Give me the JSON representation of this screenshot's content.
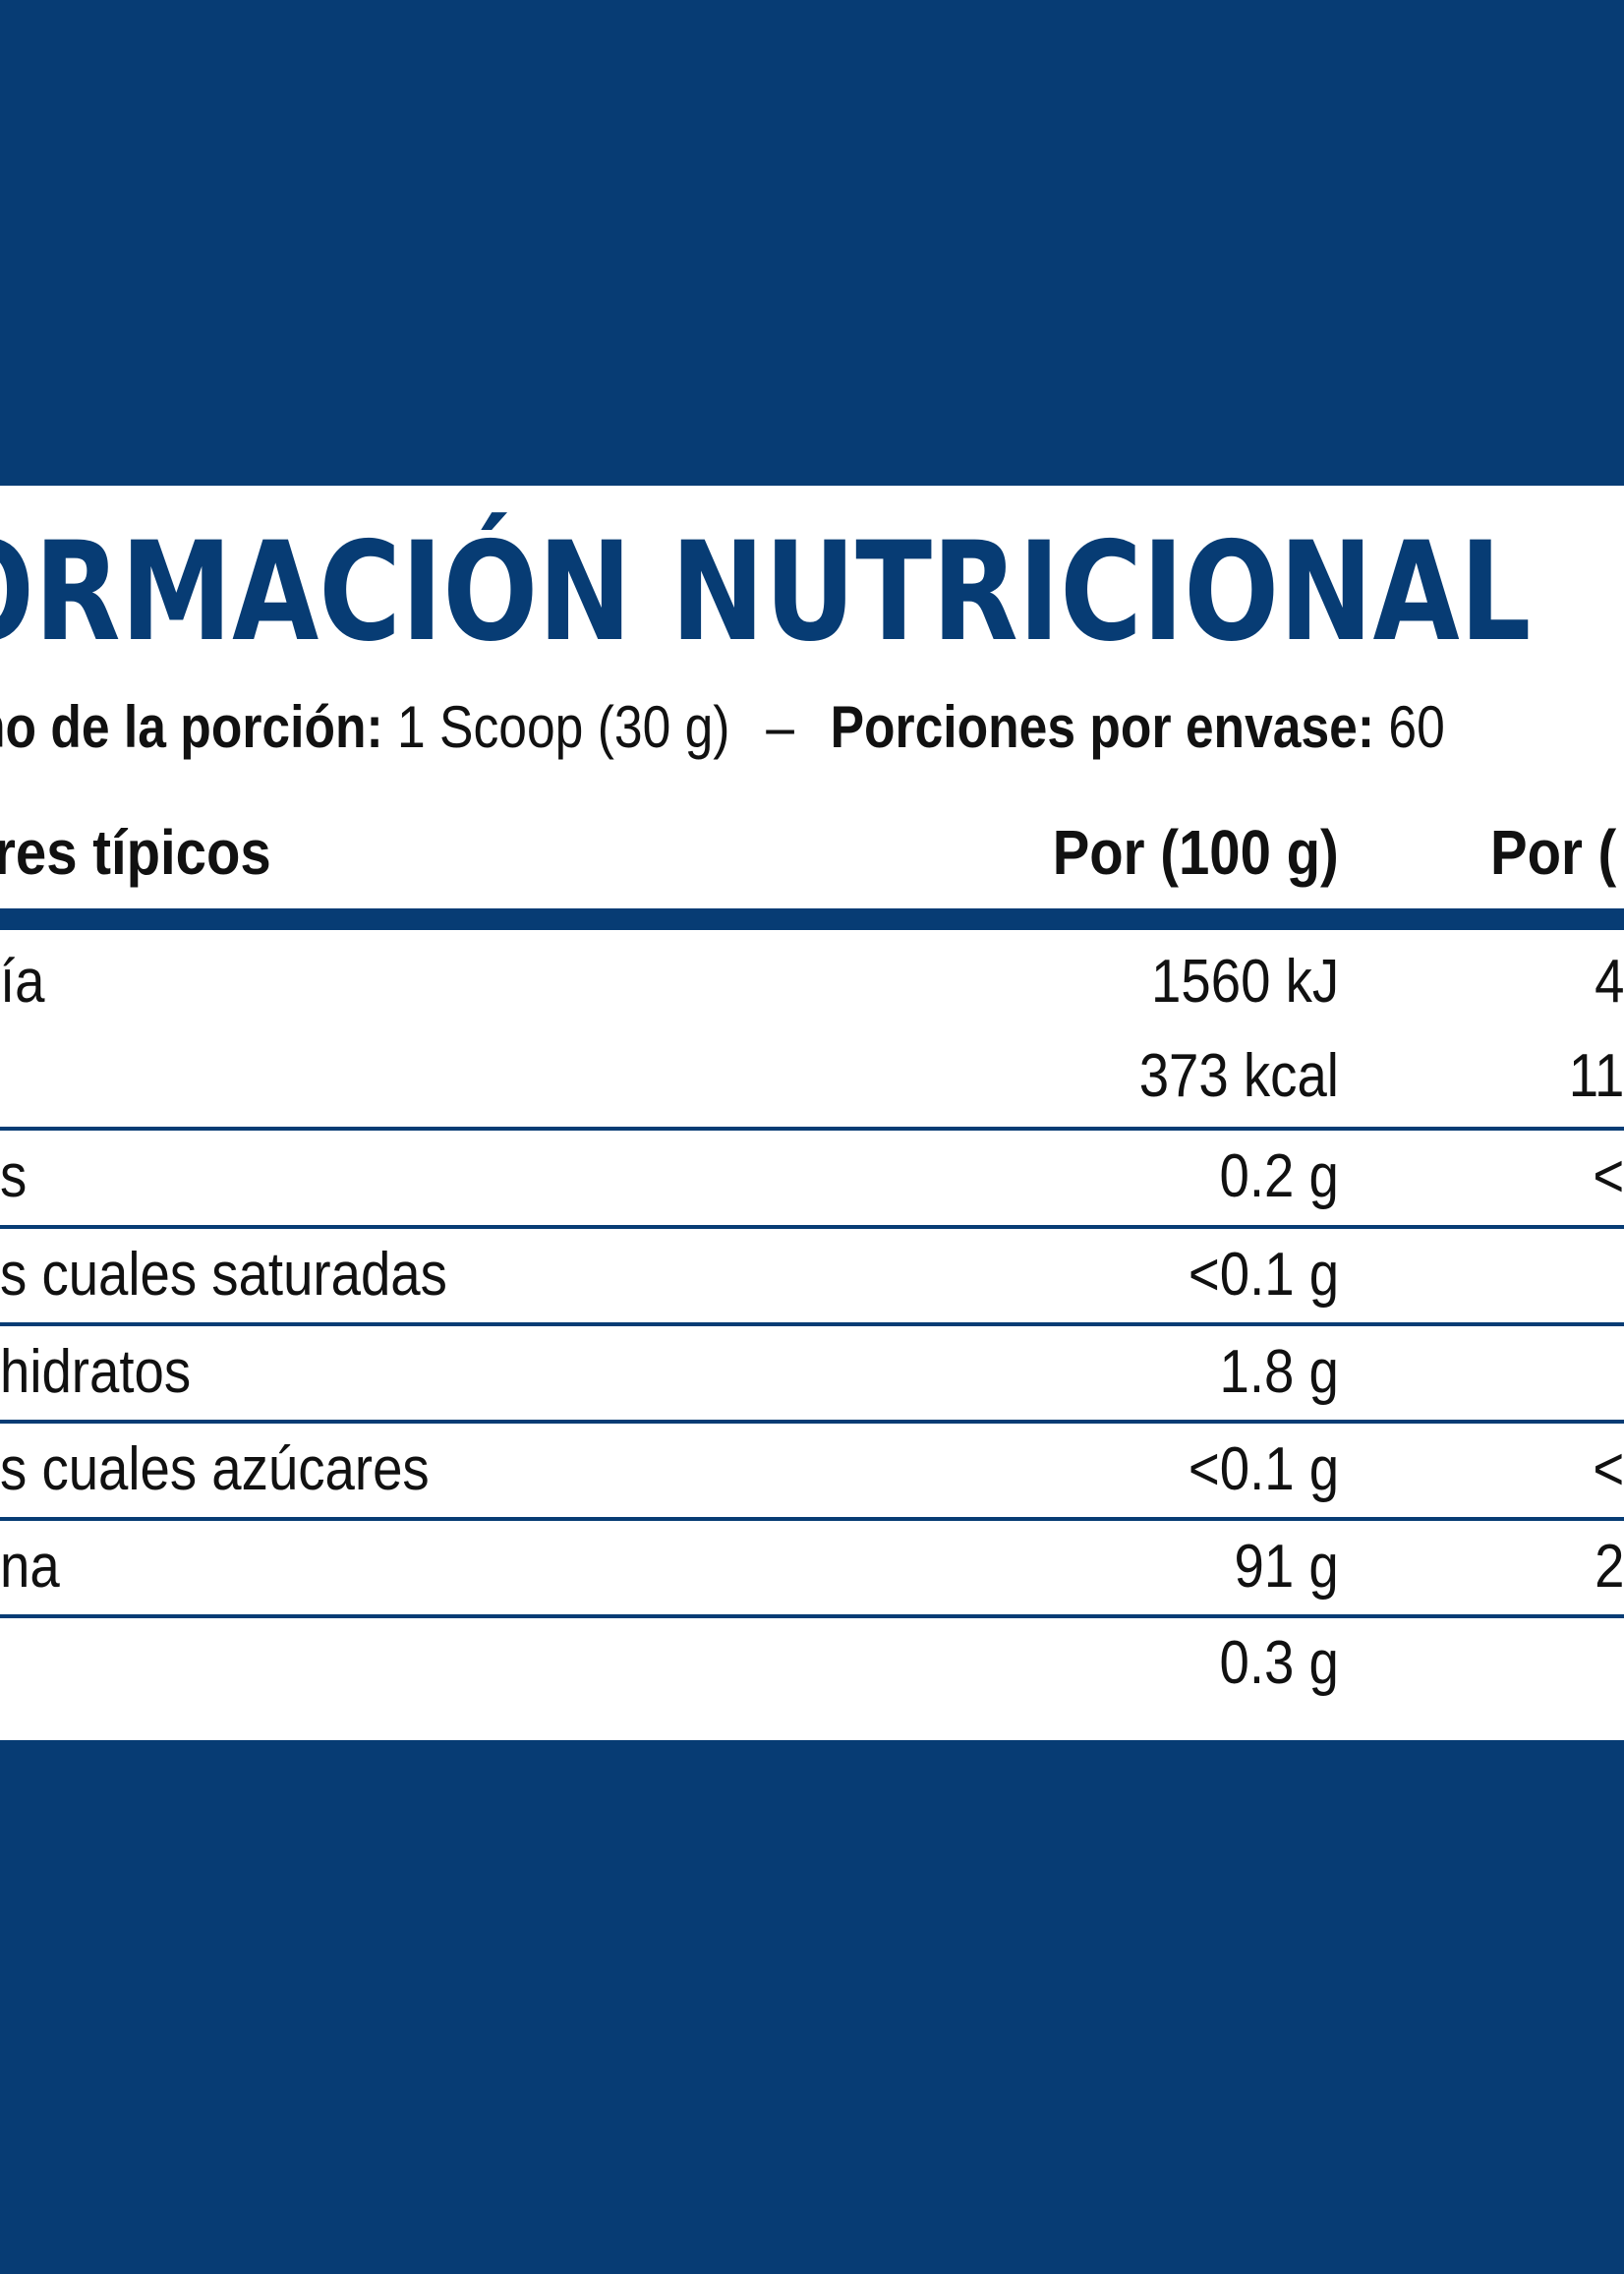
{
  "panel": {
    "title": "ORMACIÓN NUTRICIONAL",
    "serving_size_label": "ño de la porción:",
    "serving_size_value": "1 Scoop (30 g)",
    "separator": "–",
    "servings_label": "Porciones por envase:",
    "servings_value": "60"
  },
  "table": {
    "headers": [
      "res típicos",
      "Por (100 g)",
      "Por ("
    ],
    "rows": [
      {
        "label": "ía",
        "per100": "1560 kJ",
        "perServing": "4"
      },
      {
        "label": "",
        "per100": "373 kcal",
        "perServing": "11"
      },
      {
        "label": "s",
        "per100": "0.2 g",
        "perServing": "<"
      },
      {
        "label": "s cuales saturadas",
        "per100": "<0.1 g",
        "perServing": ""
      },
      {
        "label": "hidratos",
        "per100": "1.8 g",
        "perServing": ""
      },
      {
        "label": "s cuales azúcares",
        "per100": "<0.1 g",
        "perServing": "<"
      },
      {
        "label": "na",
        "per100": "91 g",
        "perServing": "2"
      },
      {
        "label": "",
        "per100": "0.3 g",
        "perServing": ""
      }
    ]
  },
  "colors": {
    "background": "#073c74",
    "panel": "#ffffff",
    "text": "#111111"
  }
}
